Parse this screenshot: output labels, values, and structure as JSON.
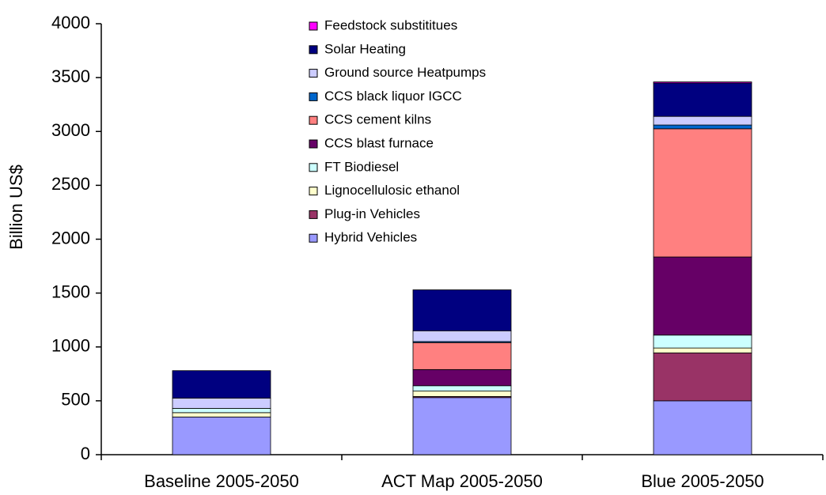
{
  "chart_data": {
    "type": "stacked_bar",
    "y_label": "Billion US$",
    "categories": [
      "Baseline 2005-2050",
      "ACT Map 2005-2050",
      "Blue 2005-2050"
    ],
    "series": [
      {
        "name": "Hybrid Vehicles",
        "color": "#9999ff",
        "values": [
          350,
          530,
          500
        ]
      },
      {
        "name": "Plug-in Vehicles",
        "color": "#993366",
        "values": [
          0,
          10,
          445
        ]
      },
      {
        "name": "Lignocellulosic ethanol",
        "color": "#ffffcc",
        "values": [
          40,
          50,
          45
        ]
      },
      {
        "name": "FT Biodiesel",
        "color": "#ccffff",
        "values": [
          40,
          50,
          120
        ]
      },
      {
        "name": "CCS blast furnace",
        "color": "#660066",
        "values": [
          0,
          150,
          725
        ]
      },
      {
        "name": "CCS cement kilns",
        "color": "#ff8080",
        "values": [
          0,
          250,
          1190
        ]
      },
      {
        "name": "CCS black liquor IGCC",
        "color": "#0066cc",
        "values": [
          0,
          10,
          35
        ]
      },
      {
        "name": "Ground source Heatpumps",
        "color": "#ccccff",
        "values": [
          95,
          100,
          80
        ]
      },
      {
        "name": "Solar Heating",
        "color": "#000080",
        "values": [
          255,
          380,
          310
        ]
      },
      {
        "name": "Feedstock substititues",
        "color": "#ff00ff",
        "values": [
          0,
          0,
          10
        ]
      }
    ],
    "ylim": [
      0,
      4000
    ],
    "yticks": [
      0,
      500,
      1000,
      1500,
      2000,
      2500,
      3000,
      3500,
      4000
    ],
    "legend": "top"
  }
}
